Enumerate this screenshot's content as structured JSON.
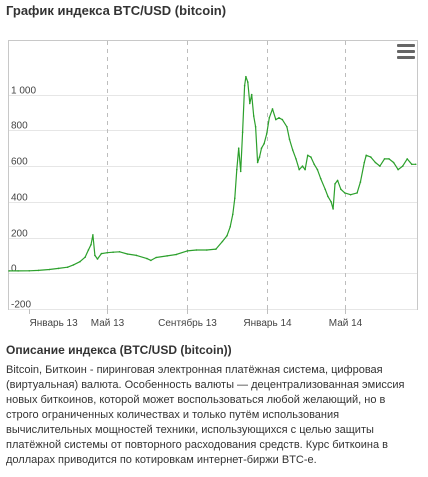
{
  "header": {
    "title": "График индекса BTC/USD (bitcoin)"
  },
  "menu": {
    "icon": "hamburger-menu-icon"
  },
  "description": {
    "title": "Описание индекса (BTC/USD (bitcoin))",
    "text": "Bitcoin, Биткоин - пиринговая электронная платёжная система, цифровая (виртуальная) валюта. Особенность валюты — децентрализованная эмиссия новых биткоинов, которой может воспользоваться любой желающий, но в строго ограниченных количествах и только путём использования вычислительных мощностей техники, использующихся с целью защиты платёжной системы от повторного расходования средств. Курс биткоина в долларах приводится по котировкам интернет-биржи BTC-e."
  },
  "colors": {
    "line": "#2ca02c",
    "grid": "#e6e6e6",
    "axis": "#c0c0c0"
  },
  "chart_data": {
    "type": "line",
    "title": "",
    "xlabel": "",
    "ylabel": "",
    "ylim": [
      -200,
      1300
    ],
    "yticks": [
      {
        "value": -200,
        "label": "-200"
      },
      {
        "value": 0,
        "label": "0"
      },
      {
        "value": 200,
        "label": "200"
      },
      {
        "value": 400,
        "label": "400"
      },
      {
        "value": 600,
        "label": "600"
      },
      {
        "value": 800,
        "label": "800"
      },
      {
        "value": 1000,
        "label": "1 000"
      }
    ],
    "xlim": [
      "2012-12-01",
      "2014-08-20"
    ],
    "xticks": [
      {
        "date": "2013-01-01",
        "label": "Январь 13"
      },
      {
        "date": "2013-05-01",
        "label": "Май 13"
      },
      {
        "date": "2013-09-01",
        "label": "Сентябрь 13"
      },
      {
        "date": "2014-01-01",
        "label": "Январь 14"
      },
      {
        "date": "2014-05-01",
        "label": "Май 14"
      }
    ],
    "grid": true,
    "series": [
      {
        "name": "",
        "x": [
          "2012-12-01",
          "2012-12-15",
          "2013-01-01",
          "2013-01-15",
          "2013-02-01",
          "2013-02-15",
          "2013-03-01",
          "2013-03-10",
          "2013-03-20",
          "2013-03-28",
          "2013-04-02",
          "2013-04-06",
          "2013-04-09",
          "2013-04-12",
          "2013-04-16",
          "2013-04-22",
          "2013-05-01",
          "2013-05-10",
          "2013-05-20",
          "2013-06-01",
          "2013-06-15",
          "2013-07-01",
          "2013-07-07",
          "2013-07-15",
          "2013-08-01",
          "2013-08-15",
          "2013-09-01",
          "2013-09-15",
          "2013-10-01",
          "2013-10-15",
          "2013-10-25",
          "2013-11-01",
          "2013-11-06",
          "2013-11-10",
          "2013-11-13",
          "2013-11-16",
          "2013-11-19",
          "2013-11-22",
          "2013-11-25",
          "2013-11-28",
          "2013-11-30",
          "2013-12-03",
          "2013-12-06",
          "2013-12-09",
          "2013-12-12",
          "2013-12-15",
          "2013-12-18",
          "2013-12-21",
          "2013-12-24",
          "2013-12-28",
          "2014-01-01",
          "2014-01-05",
          "2014-01-10",
          "2014-01-15",
          "2014-01-20",
          "2014-01-25",
          "2014-02-01",
          "2014-02-05",
          "2014-02-10",
          "2014-02-15",
          "2014-02-20",
          "2014-02-25",
          "2014-03-01",
          "2014-03-05",
          "2014-03-10",
          "2014-03-15",
          "2014-03-20",
          "2014-03-25",
          "2014-04-01",
          "2014-04-05",
          "2014-04-10",
          "2014-04-13",
          "2014-04-16",
          "2014-04-20",
          "2014-04-25",
          "2014-05-01",
          "2014-05-10",
          "2014-05-20",
          "2014-05-25",
          "2014-05-31",
          "2014-06-03",
          "2014-06-10",
          "2014-06-17",
          "2014-06-24",
          "2014-07-01",
          "2014-07-08",
          "2014-07-15",
          "2014-07-22",
          "2014-07-29",
          "2014-08-05",
          "2014-08-12",
          "2014-08-18"
        ],
        "y": [
          13,
          13,
          14,
          16,
          21,
          27,
          34,
          47,
          65,
          90,
          130,
          160,
          215,
          100,
          80,
          110,
          115,
          118,
          120,
          108,
          100,
          82,
          72,
          88,
          97,
          105,
          125,
          130,
          130,
          135,
          178,
          210,
          260,
          330,
          420,
          580,
          700,
          570,
          790,
          1050,
          1100,
          1070,
          950,
          1000,
          880,
          820,
          620,
          650,
          700,
          725,
          780,
          870,
          920,
          860,
          870,
          860,
          820,
          750,
          690,
          640,
          580,
          600,
          580,
          660,
          650,
          610,
          580,
          530,
          470,
          430,
          400,
          360,
          500,
          520,
          470,
          450,
          440,
          450,
          510,
          620,
          660,
          650,
          620,
          600,
          640,
          640,
          620,
          580,
          600,
          640,
          610,
          610
        ]
      }
    ]
  }
}
